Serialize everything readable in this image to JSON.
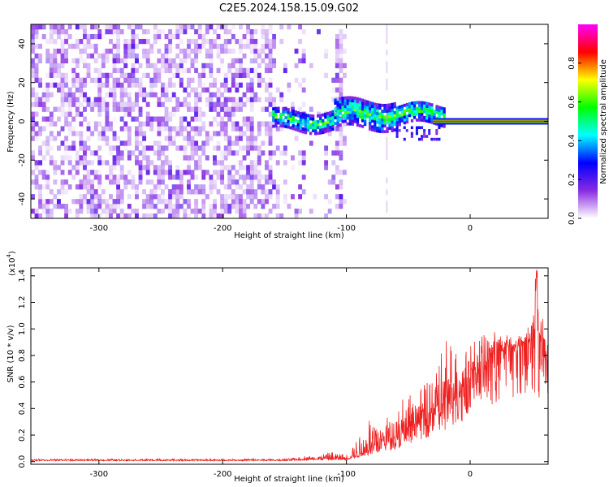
{
  "title": "C2E5.2024.158.15.09.G02",
  "chart_data": [
    {
      "type": "heatmap",
      "name": "spectrogram",
      "xlabel": "Height of straight line (km)",
      "ylabel": "Frequency (Hz)",
      "xlim": [
        -355,
        63
      ],
      "ylim": [
        -50,
        50
      ],
      "xticks": [
        -300,
        -200,
        -100,
        0
      ],
      "yticks": [
        -40,
        -20,
        0,
        20,
        40
      ],
      "xtick_labels": [
        "-300",
        "-200",
        "-100",
        "0"
      ],
      "ytick_labels": [
        "-40",
        "-20",
        "0",
        "20",
        "40"
      ],
      "colorbar": {
        "label": "Normalized spectral amplitude",
        "range": [
          0.0,
          1.0
        ],
        "ticks": [
          0.0,
          0.2,
          0.4,
          0.6,
          0.8
        ],
        "tick_labels": [
          "0.0",
          "0.2",
          "0.4",
          "0.6",
          "0.8"
        ],
        "colors": [
          "#ffffff",
          "#8a2be2",
          "#0000ff",
          "#00ffff",
          "#00ff00",
          "#ffff00",
          "#ff0000",
          "#ff00ff"
        ]
      },
      "noise_region_x": [
        -355,
        -105
      ],
      "signal_line_x": [
        -30,
        63
      ],
      "signal_line_freq": 0,
      "colors": {
        "noise": "#8000ff",
        "line": "#ff2020",
        "axis": "#000000"
      }
    },
    {
      "type": "line",
      "name": "snr",
      "xlabel": "Height of straight line (km)",
      "ylabel": "SNR (10 * v/v)",
      "y_multiplier": "(x10",
      "y_multiplier_exp": "4",
      "y_multiplier_close": ")",
      "xlim": [
        -355,
        63
      ],
      "ylim": [
        -0.02,
        1.46
      ],
      "xticks": [
        -300,
        -200,
        -100,
        0
      ],
      "yticks": [
        0.0,
        0.2,
        0.4,
        0.6,
        0.8,
        1.0,
        1.2,
        1.4
      ],
      "xtick_labels": [
        "-300",
        "-200",
        "-100",
        "0"
      ],
      "ytick_labels": [
        "0.0",
        "0.2",
        "0.4",
        "0.6",
        "0.8",
        "1.0",
        "1.2",
        "1.4"
      ],
      "series": [
        {
          "color": "#ee2020",
          "x": [
            -355,
            -300,
            -250,
            -200,
            -150,
            -120,
            -110,
            -100,
            -90,
            -80,
            -70,
            -60,
            -50,
            -40,
            -30,
            -20,
            -10,
            0,
            10,
            20,
            30,
            40,
            50,
            55,
            60,
            63
          ],
          "y": [
            0.01,
            0.01,
            0.01,
            0.01,
            0.01,
            0.02,
            0.02,
            0.02,
            0.05,
            0.1,
            0.14,
            0.17,
            0.22,
            0.3,
            0.35,
            0.42,
            0.5,
            0.6,
            0.7,
            0.8,
            0.84,
            0.87,
            0.89,
            0.9,
            0.88,
            0.87
          ],
          "spike_max": [
            0.02,
            0.02,
            0.02,
            0.02,
            0.02,
            0.06,
            0.08,
            0.05,
            0.2,
            0.35,
            0.31,
            0.45,
            0.5,
            0.55,
            0.7,
            0.92,
            0.88,
            0.93,
            0.95,
            0.98,
            0.92,
            0.93,
            1.05,
            1.45,
            1.0,
            0.99
          ]
        }
      ]
    }
  ]
}
